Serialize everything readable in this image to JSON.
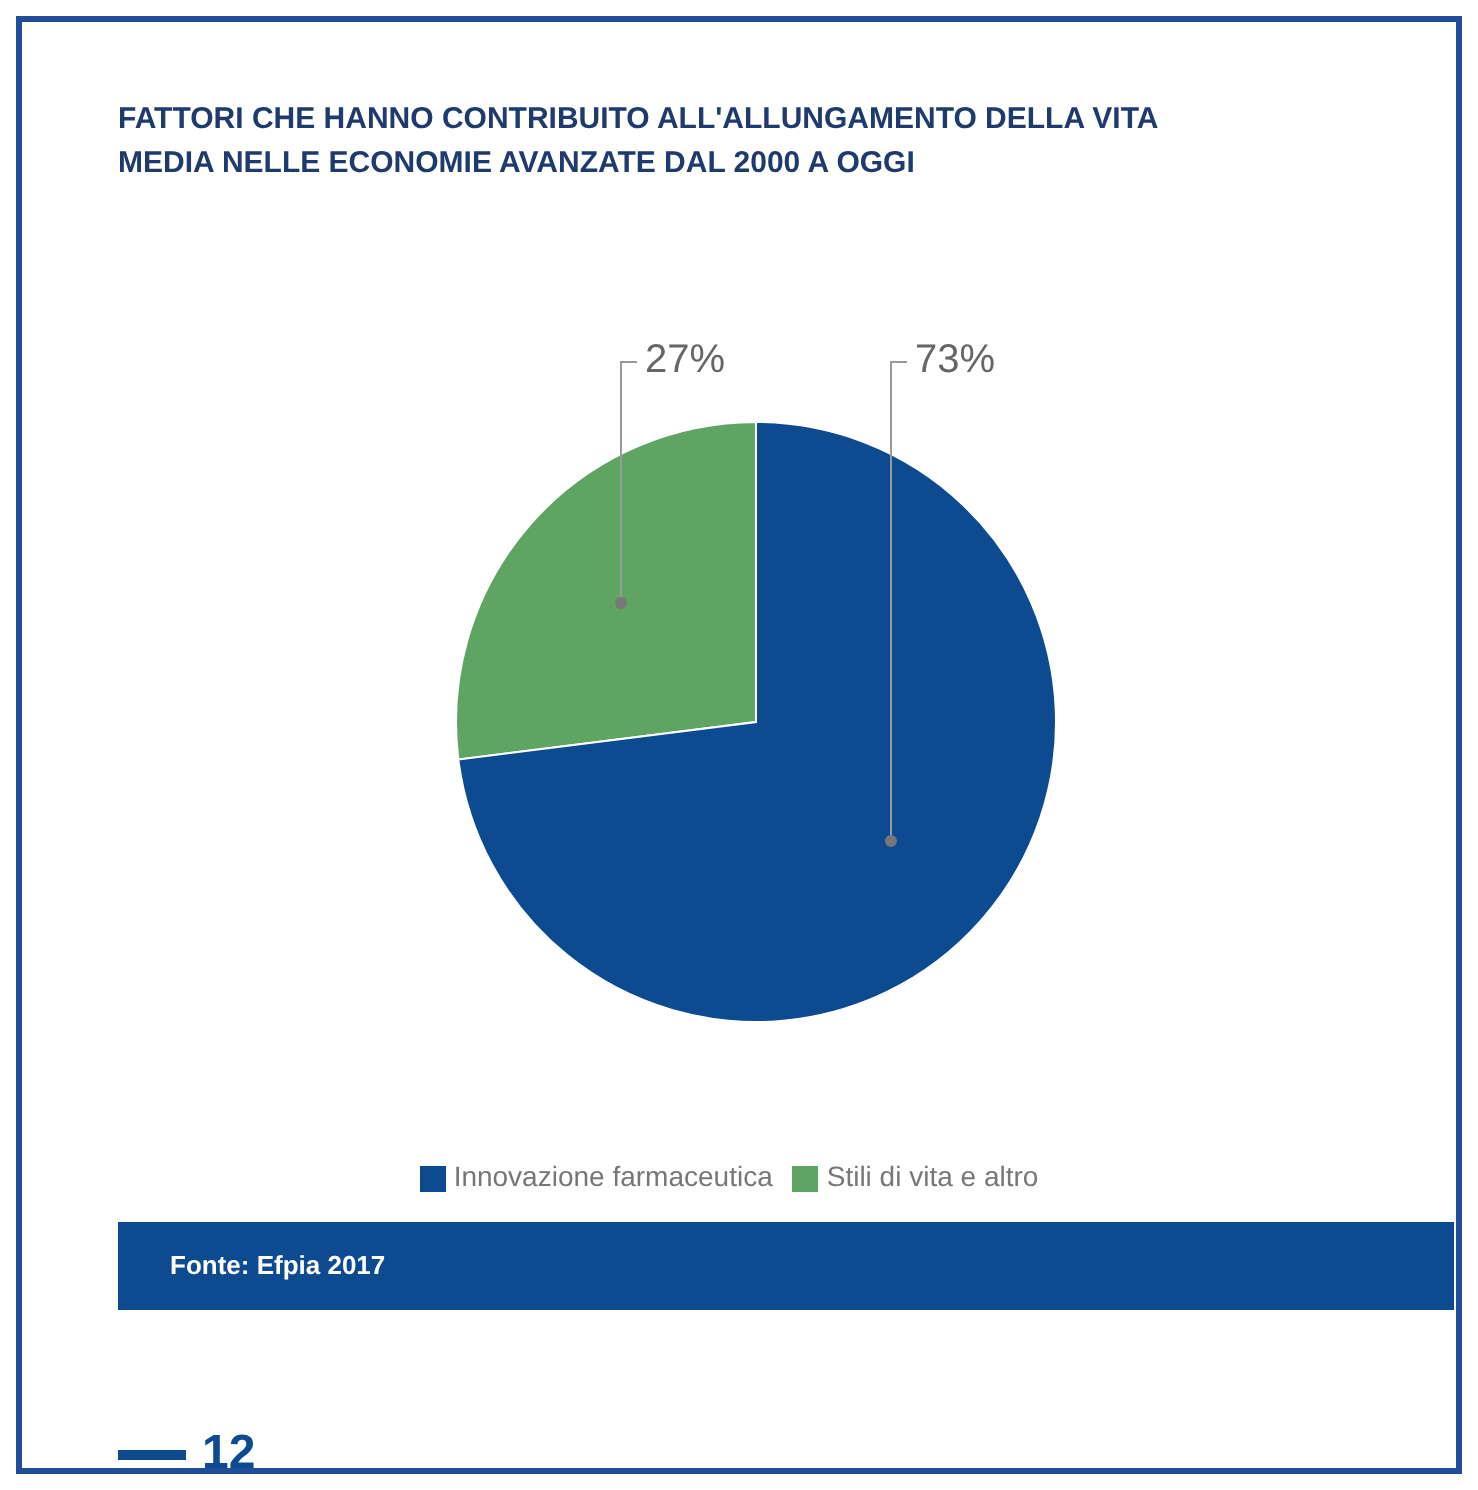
{
  "chart_data": {
    "type": "pie",
    "title": "FATTORI CHE HANNO CONTRIBUITO ALL'ALLUNGAMENTO DELLA VITA MEDIA NELLE ECONOMIE AVANZATE DAL 2000 A OGGI",
    "categories": [
      "Stili di vita e altro",
      "Innovazione farmaceutica"
    ],
    "values": [
      27,
      73
    ],
    "colors": [
      "#5fa463",
      "#0d4a8f"
    ],
    "value_labels": [
      "27%",
      "73%"
    ],
    "legend": "bottom",
    "annotations": [
      "Fonte: Efpia 2017",
      "12"
    ]
  }
}
